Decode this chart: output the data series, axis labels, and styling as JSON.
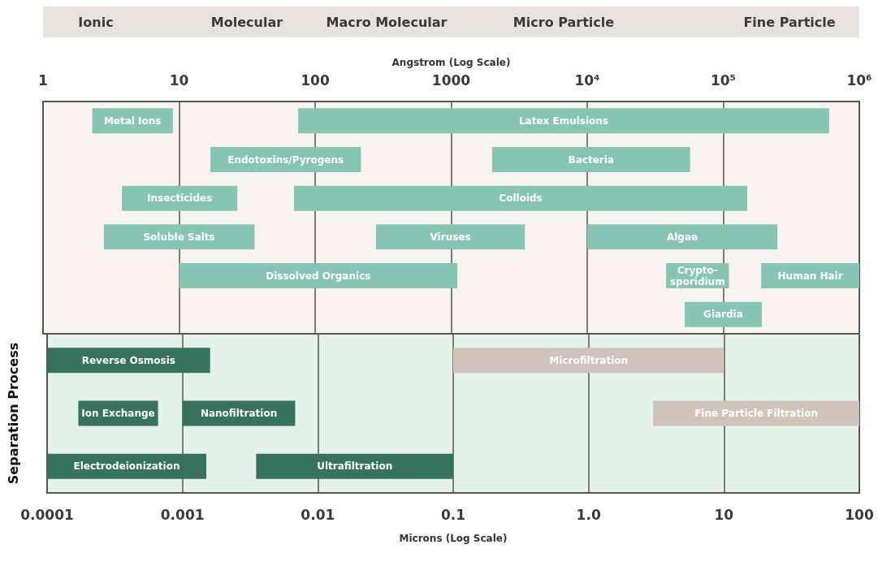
{
  "chart_data": [
    {
      "type": "bar",
      "orientation": "horizontal",
      "log": "x",
      "xlabel": "Angstrom (Log Scale)",
      "categories": [
        null,
        null,
        null,
        null,
        null,
        null
      ],
      "xlim": [
        1,
        1000000
      ],
      "xticks": [
        1,
        10,
        100,
        1000,
        {
          "value": 10000,
          "label": "10⁴"
        },
        {
          "value": 100000,
          "label": "10⁵"
        },
        {
          "value": 1000000,
          "label": "10⁶"
        }
      ],
      "grid": "x",
      "tick_labels": "x",
      "annotations": [
        "Ionic",
        "Molecular",
        "Macro Molecular",
        "Micro Particle",
        "Fine Particle"
      ],
      "series": [
        {
          "name": "Metal Ions",
          "color": "#86c4b4",
          "base": [
            2.3,
            null,
            null,
            null,
            null,
            null
          ],
          "values": [
            6.7,
            null,
            null,
            null,
            null,
            null
          ]
        },
        {
          "name": "Latex Emulsions",
          "color": "#86c4b4",
          "base": [
            75,
            null,
            null,
            null,
            null,
            null
          ],
          "values": [
            600000,
            null,
            null,
            null,
            null,
            null
          ]
        },
        {
          "name": "Endotoxins/Pyrogens",
          "color": "#86c4b4",
          "base": [
            null,
            17,
            null,
            null,
            null,
            null
          ],
          "values": [
            null,
            200,
            null,
            null,
            null,
            null
          ]
        },
        {
          "name": "Bacteria",
          "color": "#86c4b4",
          "base": [
            null,
            2000,
            null,
            null,
            null,
            null
          ],
          "values": [
            null,
            55000,
            null,
            null,
            null,
            null
          ]
        },
        {
          "name": "Insecticides",
          "color": "#86c4b4",
          "base": [
            null,
            null,
            3.8,
            null,
            null,
            null
          ],
          "values": [
            null,
            null,
            23,
            null,
            null,
            null
          ]
        },
        {
          "name": "Colloids",
          "color": "#86c4b4",
          "base": [
            null,
            null,
            70,
            null,
            null,
            null
          ],
          "values": [
            null,
            null,
            150000,
            null,
            null,
            null
          ]
        },
        {
          "name": "Soluble Salts",
          "color": "#86c4b4",
          "base": [
            null,
            null,
            null,
            2.8,
            null,
            null
          ],
          "values": [
            null,
            null,
            null,
            33,
            null,
            null
          ]
        },
        {
          "name": "Viruses",
          "color": "#86c4b4",
          "base": [
            null,
            null,
            null,
            280,
            null,
            null
          ],
          "values": [
            null,
            null,
            null,
            3200,
            null,
            null
          ]
        },
        {
          "name": "Algae",
          "color": "#86c4b4",
          "base": [
            null,
            null,
            null,
            10000,
            null,
            null
          ],
          "values": [
            null,
            null,
            null,
            240000,
            null,
            null
          ]
        },
        {
          "name": "Dissolved Organics",
          "color": "#86c4b4",
          "base": [
            null,
            null,
            null,
            null,
            10,
            null
          ],
          "values": [
            null,
            null,
            null,
            null,
            1100,
            null
          ]
        },
        {
          "name": "Crypto-\nsporidium",
          "color": "#86c4b4",
          "base": [
            null,
            null,
            null,
            null,
            38000,
            null
          ],
          "values": [
            null,
            null,
            null,
            null,
            72000,
            null
          ]
        },
        {
          "name": "Human Hair",
          "color": "#86c4b4",
          "base": [
            null,
            null,
            null,
            null,
            190000,
            null
          ],
          "values": [
            null,
            null,
            null,
            null,
            810000,
            null
          ]
        },
        {
          "name": "Giardia",
          "color": "#86c4b4",
          "base": [
            null,
            null,
            null,
            null,
            null,
            52000
          ],
          "values": [
            null,
            null,
            null,
            null,
            null,
            140000
          ]
        }
      ]
    },
    {
      "type": "bar",
      "orientation": "horizontal",
      "log": "x",
      "xlabel": "Microns (Log Scale)",
      "ylabel": "Separation Process",
      "categories": [
        null,
        null,
        null
      ],
      "xlim": [
        0.0001,
        100
      ],
      "xticks": [
        0.0001,
        0.001,
        0.01,
        0.1,
        {
          "value": 1,
          "label": "1.0"
        },
        10,
        100
      ],
      "grid": "x",
      "tick_labels": "x",
      "series": [
        {
          "name": "Reverse Osmosis",
          "color": "#36735f",
          "base": [
            0.0001,
            null,
            null
          ],
          "values": [
            0.0015,
            null,
            null
          ]
        },
        {
          "name": "Microfiltration",
          "color": "#cfc3bc",
          "base": [
            0.1,
            null,
            null
          ],
          "values": [
            9.9,
            null,
            null
          ]
        },
        {
          "name": "Ion Exchange",
          "color": "#36735f",
          "base": [
            null,
            0.00017,
            null
          ],
          "values": [
            null,
            0.00049,
            null
          ]
        },
        {
          "name": "Nanofiltration",
          "color": "#36735f",
          "base": [
            null,
            0.001,
            null
          ],
          "values": [
            null,
            0.0058,
            null
          ]
        },
        {
          "name": "Fine Particle Filtration",
          "color": "#cfc3bc",
          "base": [
            null,
            3,
            null
          ],
          "values": [
            null,
            97,
            null
          ]
        },
        {
          "name": "Electrodeionization",
          "color": "#36735f",
          "base": [
            null,
            null,
            0.0001
          ],
          "values": [
            null,
            null,
            0.0014
          ]
        },
        {
          "name": "Ultrafiltration",
          "color": "#36735f",
          "base": [
            null,
            null,
            0.0035
          ],
          "values": [
            null,
            null,
            0.0965
          ]
        }
      ]
    }
  ]
}
